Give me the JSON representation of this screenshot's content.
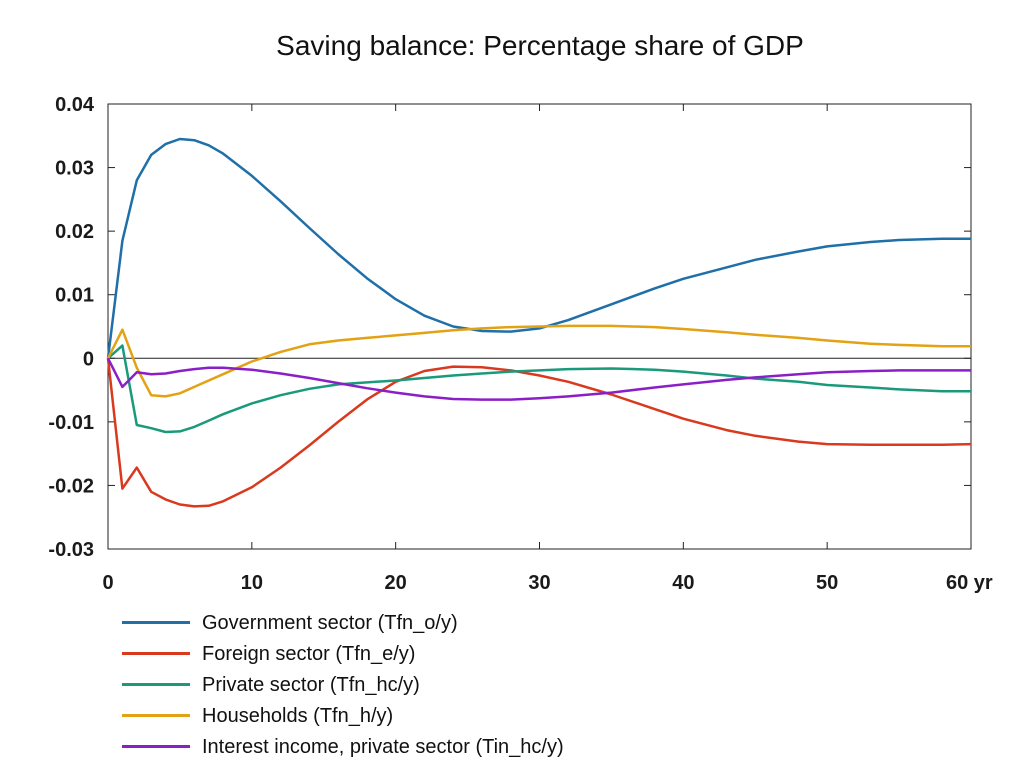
{
  "chart_data": {
    "type": "line",
    "title": "Saving balance: Percentage share of GDP",
    "xlabel": "",
    "ylabel": "",
    "x_unit_label": "yr",
    "xlim": [
      0,
      60
    ],
    "ylim": [
      -0.03,
      0.04
    ],
    "x_ticks": [
      0,
      10,
      20,
      30,
      40,
      50,
      60
    ],
    "y_ticks": [
      0.04,
      0.03,
      0.02,
      0.01,
      0,
      -0.01,
      -0.02,
      -0.03
    ],
    "x_tick_labels": [
      "0",
      "10",
      "20",
      "30",
      "40",
      "50",
      "60 yr"
    ],
    "y_tick_labels": [
      "0.04",
      "0.03",
      "0.02",
      "0.01",
      "0",
      "-0.01",
      "-0.02",
      "-0.03"
    ],
    "grid": false,
    "zero_line": true,
    "legend_position": "bottom",
    "series": [
      {
        "name": "Government sector (Tfn_o/y)",
        "color": "#1f6fa8",
        "x": [
          0,
          1,
          2,
          3,
          4,
          5,
          6,
          7,
          8,
          10,
          12,
          14,
          16,
          18,
          20,
          22,
          24,
          26,
          28,
          30,
          32,
          35,
          38,
          40,
          43,
          45,
          48,
          50,
          53,
          55,
          58,
          60
        ],
        "y": [
          0,
          0.0185,
          0.028,
          0.032,
          0.0337,
          0.0345,
          0.0343,
          0.0335,
          0.0322,
          0.0287,
          0.0247,
          0.0205,
          0.0164,
          0.0126,
          0.0093,
          0.0067,
          0.005,
          0.0043,
          0.0042,
          0.0047,
          0.006,
          0.0085,
          0.011,
          0.0125,
          0.0143,
          0.0155,
          0.0168,
          0.0176,
          0.0183,
          0.0186,
          0.0188,
          0.0188
        ]
      },
      {
        "name": "Foreign sector (Tfn_e/y)",
        "color": "#d93a1e",
        "x": [
          0,
          1,
          2,
          3,
          4,
          5,
          6,
          7,
          8,
          10,
          12,
          14,
          16,
          18,
          20,
          22,
          24,
          26,
          28,
          30,
          32,
          35,
          38,
          40,
          43,
          45,
          48,
          50,
          53,
          55,
          58,
          60
        ],
        "y": [
          0,
          -0.0205,
          -0.0172,
          -0.021,
          -0.0222,
          -0.023,
          -0.0233,
          -0.0232,
          -0.0225,
          -0.0203,
          -0.0172,
          -0.0137,
          -0.01,
          -0.0065,
          -0.0037,
          -0.002,
          -0.0013,
          -0.0014,
          -0.0019,
          -0.0027,
          -0.0037,
          -0.0057,
          -0.008,
          -0.0095,
          -0.0113,
          -0.0122,
          -0.0131,
          -0.0135,
          -0.0136,
          -0.0136,
          -0.0136,
          -0.0135
        ]
      },
      {
        "name": "Private sector (Tfn_hc/y)",
        "color": "#1a9a7a",
        "x": [
          0,
          1,
          2,
          3,
          4,
          5,
          6,
          7,
          8,
          10,
          12,
          14,
          16,
          18,
          20,
          22,
          24,
          26,
          28,
          30,
          32,
          35,
          38,
          40,
          43,
          45,
          48,
          50,
          53,
          55,
          58,
          60
        ],
        "y": [
          0,
          0.002,
          -0.0105,
          -0.011,
          -0.0116,
          -0.0115,
          -0.0108,
          -0.0098,
          -0.0088,
          -0.0071,
          -0.0058,
          -0.0048,
          -0.0041,
          -0.0038,
          -0.0035,
          -0.0031,
          -0.0027,
          -0.0024,
          -0.0021,
          -0.0019,
          -0.0017,
          -0.0016,
          -0.0018,
          -0.0021,
          -0.0027,
          -0.0032,
          -0.0037,
          -0.0042,
          -0.0046,
          -0.0049,
          -0.0052,
          -0.0052
        ]
      },
      {
        "name": "Households (Tfn_h/y)",
        "color": "#e3a214",
        "x": [
          0,
          1,
          2,
          3,
          4,
          5,
          6,
          7,
          8,
          10,
          12,
          14,
          16,
          18,
          20,
          22,
          24,
          26,
          28,
          30,
          32,
          35,
          38,
          40,
          43,
          45,
          48,
          50,
          53,
          55,
          58,
          60
        ],
        "y": [
          0,
          0.0045,
          -0.0015,
          -0.0058,
          -0.006,
          -0.0055,
          -0.0045,
          -0.0035,
          -0.0025,
          -0.0005,
          0.001,
          0.0022,
          0.0028,
          0.0032,
          0.0036,
          0.004,
          0.0044,
          0.0047,
          0.0049,
          0.005,
          0.0051,
          0.0051,
          0.0049,
          0.0046,
          0.0041,
          0.0037,
          0.0032,
          0.0028,
          0.0023,
          0.0021,
          0.0019,
          0.0019
        ]
      },
      {
        "name": "Interest income, private sector (Tin_hc/y)",
        "color": "#8a1fc7",
        "x": [
          0,
          1,
          2,
          3,
          4,
          5,
          6,
          7,
          8,
          10,
          12,
          14,
          16,
          18,
          20,
          22,
          24,
          26,
          28,
          30,
          32,
          35,
          38,
          40,
          43,
          45,
          48,
          50,
          53,
          55,
          58,
          60
        ],
        "y": [
          0,
          -0.0045,
          -0.0022,
          -0.0025,
          -0.0024,
          -0.002,
          -0.0017,
          -0.0015,
          -0.0015,
          -0.0018,
          -0.0024,
          -0.0031,
          -0.0039,
          -0.0047,
          -0.0054,
          -0.006,
          -0.0064,
          -0.0065,
          -0.0065,
          -0.0063,
          -0.006,
          -0.0054,
          -0.0046,
          -0.0041,
          -0.0034,
          -0.003,
          -0.0025,
          -0.0022,
          -0.002,
          -0.0019,
          -0.0019,
          -0.0019
        ]
      }
    ]
  }
}
